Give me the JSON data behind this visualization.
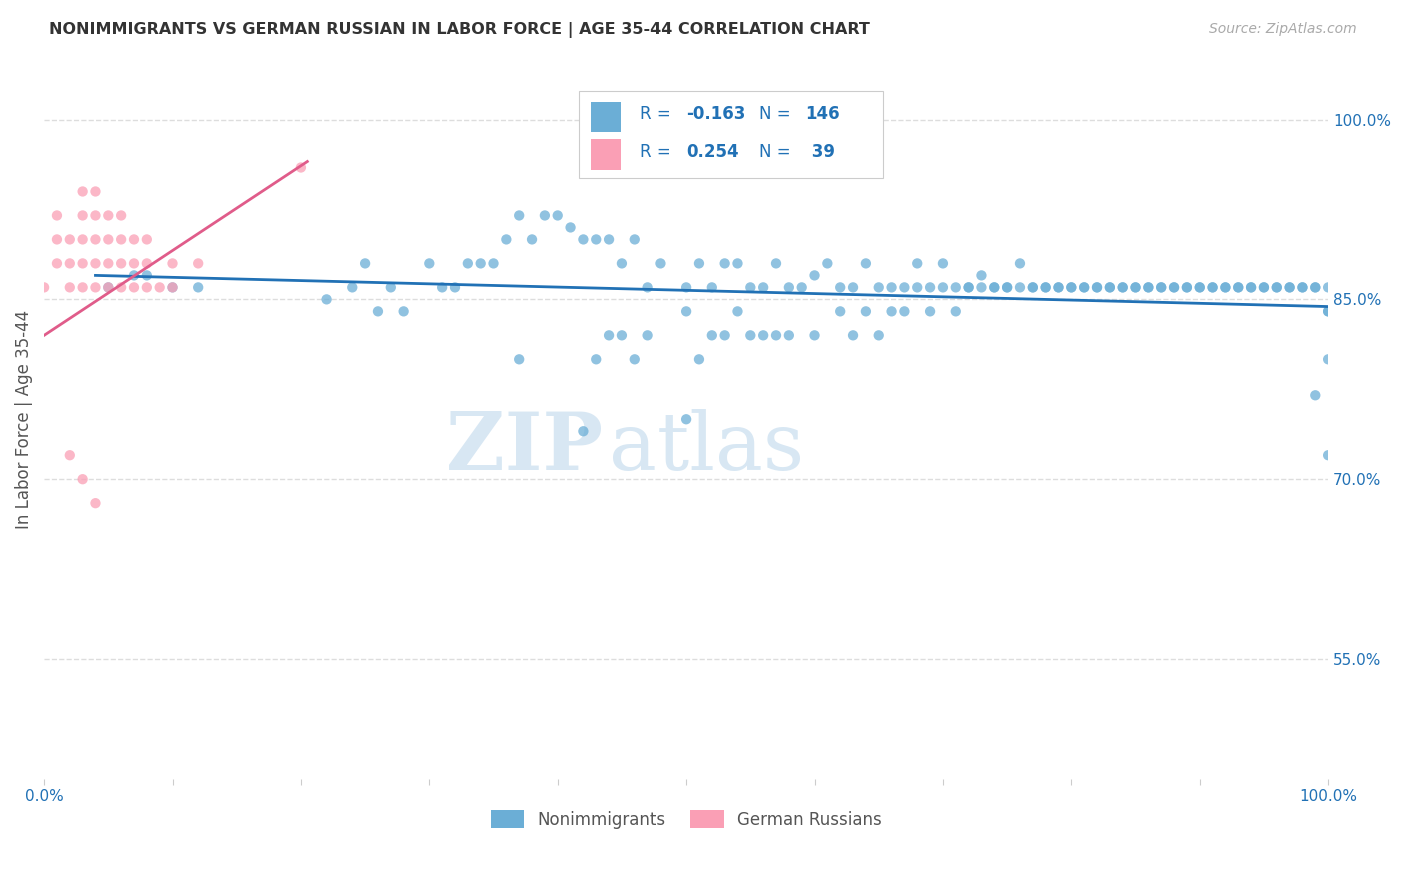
{
  "title": "NONIMMIGRANTS VS GERMAN RUSSIAN IN LABOR FORCE | AGE 35-44 CORRELATION CHART",
  "source": "Source: ZipAtlas.com",
  "ylabel": "In Labor Force | Age 35-44",
  "watermark_zip": "ZIP",
  "watermark_atlas": "atlas",
  "xlim": [
    0.0,
    1.0
  ],
  "ylim": [
    0.45,
    1.05
  ],
  "yticks": [
    0.55,
    0.7,
    0.85,
    1.0
  ],
  "ytick_labels": [
    "55.0%",
    "70.0%",
    "85.0%",
    "100.0%"
  ],
  "xticks": [
    0.0,
    0.1,
    0.2,
    0.3,
    0.4,
    0.5,
    0.6,
    0.7,
    0.8,
    0.9,
    1.0
  ],
  "xtick_labels": [
    "0.0%",
    "",
    "",
    "",
    "",
    "",
    "",
    "",
    "",
    "",
    "100.0%"
  ],
  "blue_color": "#6baed6",
  "pink_color": "#fa9fb5",
  "blue_line_color": "#2171b5",
  "pink_line_color": "#e05c8a",
  "axis_label_color": "#2171b5",
  "title_color": "#333333",
  "grid_color": "#dddddd",
  "blue_scatter_x": [
    0.05,
    0.07,
    0.08,
    0.1,
    0.12,
    0.22,
    0.24,
    0.25,
    0.26,
    0.27,
    0.28,
    0.3,
    0.31,
    0.32,
    0.33,
    0.34,
    0.35,
    0.36,
    0.37,
    0.38,
    0.39,
    0.4,
    0.41,
    0.42,
    0.43,
    0.44,
    0.45,
    0.46,
    0.47,
    0.48,
    0.5,
    0.5,
    0.51,
    0.52,
    0.53,
    0.54,
    0.55,
    0.56,
    0.57,
    0.58,
    0.59,
    0.6,
    0.61,
    0.62,
    0.63,
    0.64,
    0.65,
    0.66,
    0.67,
    0.68,
    0.69,
    0.7,
    0.71,
    0.72,
    0.73,
    0.74,
    0.75,
    0.76,
    0.77,
    0.78,
    0.79,
    0.8,
    0.81,
    0.82,
    0.83,
    0.84,
    0.85,
    0.86,
    0.87,
    0.88,
    0.89,
    0.9,
    0.91,
    0.92,
    0.93,
    0.94,
    0.95,
    0.96,
    0.97,
    0.98,
    0.99,
    0.37,
    0.42,
    0.43,
    0.44,
    0.45,
    0.46,
    0.47,
    0.5,
    0.51,
    0.52,
    0.53,
    0.54,
    0.55,
    0.56,
    0.57,
    0.58,
    0.6,
    0.62,
    0.63,
    0.64,
    0.65,
    0.66,
    0.67,
    0.68,
    0.69,
    0.7,
    0.71,
    0.72,
    0.73,
    0.74,
    0.75,
    0.76,
    0.77,
    0.78,
    0.79,
    0.8,
    0.81,
    0.82,
    0.83,
    0.84,
    0.85,
    0.86,
    0.87,
    0.88,
    0.89,
    0.9,
    0.91,
    0.92,
    0.93,
    0.94,
    0.95,
    0.96,
    0.97,
    0.98,
    0.99,
    1.0,
    0.99,
    1.0,
    1.0,
    1.0,
    1.0
  ],
  "blue_scatter_y": [
    0.86,
    0.87,
    0.87,
    0.86,
    0.86,
    0.85,
    0.86,
    0.88,
    0.84,
    0.86,
    0.84,
    0.88,
    0.86,
    0.86,
    0.88,
    0.88,
    0.88,
    0.9,
    0.92,
    0.9,
    0.92,
    0.92,
    0.91,
    0.9,
    0.9,
    0.9,
    0.88,
    0.9,
    0.86,
    0.88,
    0.84,
    0.86,
    0.88,
    0.86,
    0.88,
    0.88,
    0.86,
    0.86,
    0.88,
    0.86,
    0.86,
    0.87,
    0.88,
    0.86,
    0.86,
    0.88,
    0.86,
    0.86,
    0.86,
    0.88,
    0.86,
    0.88,
    0.86,
    0.86,
    0.87,
    0.86,
    0.86,
    0.88,
    0.86,
    0.86,
    0.86,
    0.86,
    0.86,
    0.86,
    0.86,
    0.86,
    0.86,
    0.86,
    0.86,
    0.86,
    0.86,
    0.86,
    0.86,
    0.86,
    0.86,
    0.86,
    0.86,
    0.86,
    0.86,
    0.86,
    0.86,
    0.8,
    0.74,
    0.8,
    0.82,
    0.82,
    0.8,
    0.82,
    0.75,
    0.8,
    0.82,
    0.82,
    0.84,
    0.82,
    0.82,
    0.82,
    0.82,
    0.82,
    0.84,
    0.82,
    0.84,
    0.82,
    0.84,
    0.84,
    0.86,
    0.84,
    0.86,
    0.84,
    0.86,
    0.86,
    0.86,
    0.86,
    0.86,
    0.86,
    0.86,
    0.86,
    0.86,
    0.86,
    0.86,
    0.86,
    0.86,
    0.86,
    0.86,
    0.86,
    0.86,
    0.86,
    0.86,
    0.86,
    0.86,
    0.86,
    0.86,
    0.86,
    0.86,
    0.86,
    0.86,
    0.86,
    0.86,
    0.77,
    0.72,
    0.8,
    0.84,
    0.84
  ],
  "pink_scatter_x": [
    0.0,
    0.01,
    0.01,
    0.01,
    0.02,
    0.02,
    0.02,
    0.03,
    0.03,
    0.03,
    0.03,
    0.03,
    0.04,
    0.04,
    0.04,
    0.04,
    0.04,
    0.05,
    0.05,
    0.05,
    0.05,
    0.06,
    0.06,
    0.06,
    0.06,
    0.07,
    0.07,
    0.07,
    0.08,
    0.08,
    0.08,
    0.09,
    0.1,
    0.1,
    0.12,
    0.2,
    0.02,
    0.03,
    0.04
  ],
  "pink_scatter_y": [
    0.86,
    0.88,
    0.9,
    0.92,
    0.86,
    0.88,
    0.9,
    0.86,
    0.88,
    0.9,
    0.92,
    0.94,
    0.86,
    0.88,
    0.9,
    0.92,
    0.94,
    0.86,
    0.88,
    0.9,
    0.92,
    0.86,
    0.88,
    0.9,
    0.92,
    0.86,
    0.88,
    0.9,
    0.86,
    0.88,
    0.9,
    0.86,
    0.86,
    0.88,
    0.88,
    0.96,
    0.72,
    0.7,
    0.68
  ],
  "blue_trend_x": [
    0.04,
    1.0
  ],
  "blue_trend_y": [
    0.87,
    0.844
  ],
  "pink_trend_x": [
    0.0,
    0.205
  ],
  "pink_trend_y": [
    0.82,
    0.965
  ]
}
